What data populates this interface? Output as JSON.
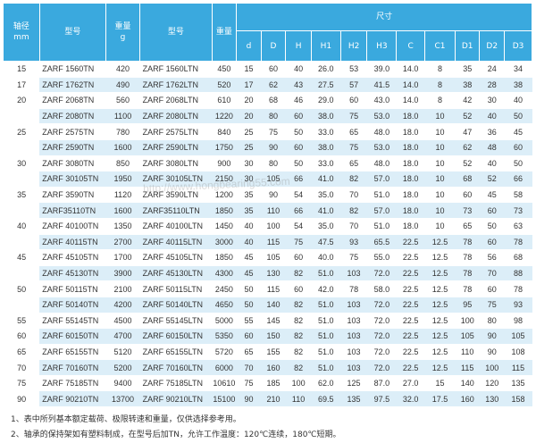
{
  "header": {
    "shaft": "轴径\nmm",
    "model1": "型号",
    "weight1": "重量\ng",
    "model2": "型号",
    "weight2": "重量",
    "size": "尺寸",
    "dims": [
      "d",
      "D",
      "H",
      "H1",
      "H2",
      "H3",
      "C",
      "C1",
      "D1",
      "D2",
      "D3"
    ]
  },
  "rows": [
    {
      "shaft": "15",
      "m1": "ZARF 1560TN",
      "w1": "420",
      "m2": "ZARF 1560LTN",
      "w2": "450",
      "v": [
        "15",
        "60",
        "40",
        "26.0",
        "53",
        "39.0",
        "14.0",
        "8",
        "35",
        "24",
        "34"
      ]
    },
    {
      "shaft": "17",
      "m1": "ZARF 1762TN",
      "w1": "490",
      "m2": "ZARF 1762LTN",
      "w2": "520",
      "v": [
        "17",
        "62",
        "43",
        "27.5",
        "57",
        "41.5",
        "14.0",
        "8",
        "38",
        "28",
        "38"
      ]
    },
    {
      "shaft": "20",
      "m1": "ZARF 2068TN",
      "w1": "560",
      "m2": "ZARF 2068LTN",
      "w2": "610",
      "v": [
        "20",
        "68",
        "46",
        "29.0",
        "60",
        "43.0",
        "14.0",
        "8",
        "42",
        "30",
        "40"
      ]
    },
    {
      "shaft": "",
      "m1": "ZARF 2080TN",
      "w1": "1100",
      "m2": "ZARF 2080LTN",
      "w2": "1220",
      "v": [
        "20",
        "80",
        "60",
        "38.0",
        "75",
        "53.0",
        "18.0",
        "10",
        "52",
        "40",
        "50"
      ]
    },
    {
      "shaft": "25",
      "m1": "ZARF 2575TN",
      "w1": "780",
      "m2": "ZARF 2575LTN",
      "w2": "840",
      "v": [
        "25",
        "75",
        "50",
        "33.0",
        "65",
        "48.0",
        "18.0",
        "10",
        "47",
        "36",
        "45"
      ]
    },
    {
      "shaft": "",
      "m1": "ZARF 2590TN",
      "w1": "1600",
      "m2": "ZARF 2590LTN",
      "w2": "1750",
      "v": [
        "25",
        "90",
        "60",
        "38.0",
        "75",
        "53.0",
        "18.0",
        "10",
        "62",
        "48",
        "60"
      ]
    },
    {
      "shaft": "30",
      "m1": "ZARF 3080TN",
      "w1": "850",
      "m2": "ZARF 3080LTN",
      "w2": "900",
      "v": [
        "30",
        "80",
        "50",
        "33.0",
        "65",
        "48.0",
        "18.0",
        "10",
        "52",
        "40",
        "50"
      ]
    },
    {
      "shaft": "",
      "m1": "ZARF 30105TN",
      "w1": "1950",
      "m2": "ZARF 30105LTN",
      "w2": "2150",
      "v": [
        "30",
        "105",
        "66",
        "41.0",
        "82",
        "57.0",
        "18.0",
        "10",
        "68",
        "52",
        "66"
      ]
    },
    {
      "shaft": "35",
      "m1": "ZARF 3590TN",
      "w1": "1120",
      "m2": "ZARF 3590LTN",
      "w2": "1200",
      "v": [
        "35",
        "90",
        "54",
        "35.0",
        "70",
        "51.0",
        "18.0",
        "10",
        "60",
        "45",
        "58"
      ]
    },
    {
      "shaft": "",
      "m1": "ZARF35110TN",
      "w1": "1600",
      "m2": "ZARF35110LTN",
      "w2": "1850",
      "v": [
        "35",
        "110",
        "66",
        "41.0",
        "82",
        "57.0",
        "18.0",
        "10",
        "73",
        "60",
        "73"
      ]
    },
    {
      "shaft": "40",
      "m1": "ZARF 40100TN",
      "w1": "1350",
      "m2": "ZARF 40100LTN",
      "w2": "1450",
      "v": [
        "40",
        "100",
        "54",
        "35.0",
        "70",
        "51.0",
        "18.0",
        "10",
        "65",
        "50",
        "63"
      ]
    },
    {
      "shaft": "",
      "m1": "ZARF 40115TN",
      "w1": "2700",
      "m2": "ZARF 40115LTN",
      "w2": "3000",
      "v": [
        "40",
        "115",
        "75",
        "47.5",
        "93",
        "65.5",
        "22.5",
        "12.5",
        "78",
        "60",
        "78"
      ]
    },
    {
      "shaft": "45",
      "m1": "ZARF 45105TN",
      "w1": "1700",
      "m2": "ZARF 45105LTN",
      "w2": "1850",
      "v": [
        "45",
        "105",
        "60",
        "40.0",
        "75",
        "55.0",
        "22.5",
        "12.5",
        "78",
        "56",
        "68"
      ]
    },
    {
      "shaft": "",
      "m1": "ZARF 45130TN",
      "w1": "3900",
      "m2": "ZARF 45130LTN",
      "w2": "4300",
      "v": [
        "45",
        "130",
        "82",
        "51.0",
        "103",
        "72.0",
        "22.5",
        "12.5",
        "78",
        "70",
        "88"
      ]
    },
    {
      "shaft": "50",
      "m1": "ZARF 50115TN",
      "w1": "2100",
      "m2": "ZARF 50115LTN",
      "w2": "2450",
      "v": [
        "50",
        "115",
        "60",
        "42.0",
        "78",
        "58.0",
        "22.5",
        "12.5",
        "78",
        "60",
        "78"
      ]
    },
    {
      "shaft": "",
      "m1": "ZARF 50140TN",
      "w1": "4200",
      "m2": "ZARF 50140LTN",
      "w2": "4650",
      "v": [
        "50",
        "140",
        "82",
        "51.0",
        "103",
        "72.0",
        "22.5",
        "12.5",
        "95",
        "75",
        "93"
      ]
    },
    {
      "shaft": "55",
      "m1": "ZARF 55145TN",
      "w1": "4500",
      "m2": "ZARF 55145LTN",
      "w2": "5000",
      "v": [
        "55",
        "145",
        "82",
        "51.0",
        "103",
        "72.0",
        "22.5",
        "12.5",
        "100",
        "80",
        "98"
      ]
    },
    {
      "shaft": "60",
      "m1": "ZARF 60150TN",
      "w1": "4700",
      "m2": "ZARF 60150LTN",
      "w2": "5350",
      "v": [
        "60",
        "150",
        "82",
        "51.0",
        "103",
        "72.0",
        "22.5",
        "12.5",
        "105",
        "90",
        "105"
      ]
    },
    {
      "shaft": "65",
      "m1": "ZARF 65155TN",
      "w1": "5120",
      "m2": "ZARF 65155LTN",
      "w2": "5720",
      "v": [
        "65",
        "155",
        "82",
        "51.0",
        "103",
        "72.0",
        "22.5",
        "12.5",
        "110",
        "90",
        "108"
      ]
    },
    {
      "shaft": "70",
      "m1": "ZARF 70160TN",
      "w1": "5200",
      "m2": "ZARF 70160LTN",
      "w2": "6000",
      "v": [
        "70",
        "160",
        "82",
        "51.0",
        "103",
        "72.0",
        "22.5",
        "12.5",
        "115",
        "100",
        "115"
      ]
    },
    {
      "shaft": "75",
      "m1": "ZARF 75185TN",
      "w1": "9400",
      "m2": "ZARF 75185LTN",
      "w2": "10610",
      "v": [
        "75",
        "185",
        "100",
        "62.0",
        "125",
        "87.0",
        "27.0",
        "15",
        "140",
        "120",
        "135"
      ]
    },
    {
      "shaft": "90",
      "m1": "ZARF 90210TN",
      "w1": "13700",
      "m2": "ZARF 90210LTN",
      "w2": "15100",
      "v": [
        "90",
        "210",
        "110",
        "69.5",
        "135",
        "97.5",
        "32.0",
        "17.5",
        "160",
        "130",
        "158"
      ]
    }
  ],
  "notes": [
    "1、表中所列基本额定载荷、极限转速和重量，仅供选择参考用。",
    "2、轴承的保持架如有塑料制成，在型号后加TN，允许工作温度：120℃连续，180℃短期。"
  ],
  "watermark": "http://www.hongbearing55.com",
  "colors": {
    "header": "#3aa9de",
    "stripe": "#dceef8",
    "text": "#333333"
  }
}
